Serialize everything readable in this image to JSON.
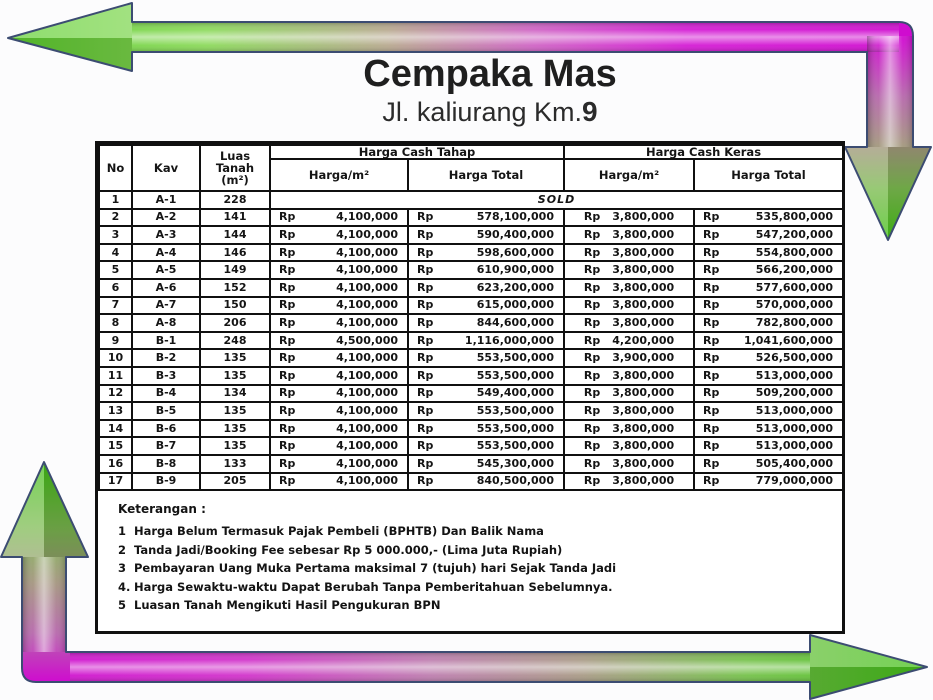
{
  "header": {
    "title": "Cempaka Mas",
    "subtitle_prefix": "Jl. kaliurang Km.",
    "subtitle_km": "9"
  },
  "table": {
    "col_headers": {
      "no": "No",
      "kav": "Kav",
      "luas": "Luas Tanah (m²)",
      "cash_tahap": "Harga Cash Tahap",
      "cash_keras": "Harga Cash Keras",
      "harga_per_m2": "Harga/m²",
      "harga_total": "Harga Total"
    },
    "currency": "Rp",
    "sold_label": "SOLD",
    "rows": [
      {
        "no": "1",
        "kav": "A-1",
        "luas": "228",
        "sold": true
      },
      {
        "no": "2",
        "kav": "A-2",
        "luas": "141",
        "tahap_per_m2": "4,100,000",
        "tahap_total": "578,100,000",
        "keras_per_m2": "3,800,000",
        "keras_total": "535,800,000"
      },
      {
        "no": "3",
        "kav": "A-3",
        "luas": "144",
        "tahap_per_m2": "4,100,000",
        "tahap_total": "590,400,000",
        "keras_per_m2": "3,800,000",
        "keras_total": "547,200,000"
      },
      {
        "no": "4",
        "kav": "A-4",
        "luas": "146",
        "tahap_per_m2": "4,100,000",
        "tahap_total": "598,600,000",
        "keras_per_m2": "3,800,000",
        "keras_total": "554,800,000"
      },
      {
        "no": "5",
        "kav": "A-5",
        "luas": "149",
        "tahap_per_m2": "4,100,000",
        "tahap_total": "610,900,000",
        "keras_per_m2": "3,800,000",
        "keras_total": "566,200,000"
      },
      {
        "no": "6",
        "kav": "A-6",
        "luas": "152",
        "tahap_per_m2": "4,100,000",
        "tahap_total": "623,200,000",
        "keras_per_m2": "3,800,000",
        "keras_total": "577,600,000"
      },
      {
        "no": "7",
        "kav": "A-7",
        "luas": "150",
        "tahap_per_m2": "4,100,000",
        "tahap_total": "615,000,000",
        "keras_per_m2": "3,800,000",
        "keras_total": "570,000,000"
      },
      {
        "no": "8",
        "kav": "A-8",
        "luas": "206",
        "tahap_per_m2": "4,100,000",
        "tahap_total": "844,600,000",
        "keras_per_m2": "3,800,000",
        "keras_total": "782,800,000"
      },
      {
        "no": "9",
        "kav": "B-1",
        "luas": "248",
        "tahap_per_m2": "4,500,000",
        "tahap_total": "1,116,000,000",
        "keras_per_m2": "4,200,000",
        "keras_total": "1,041,600,000"
      },
      {
        "no": "10",
        "kav": "B-2",
        "luas": "135",
        "tahap_per_m2": "4,100,000",
        "tahap_total": "553,500,000",
        "keras_per_m2": "3,900,000",
        "keras_total": "526,500,000"
      },
      {
        "no": "11",
        "kav": "B-3",
        "luas": "135",
        "tahap_per_m2": "4,100,000",
        "tahap_total": "553,500,000",
        "keras_per_m2": "3,800,000",
        "keras_total": "513,000,000"
      },
      {
        "no": "12",
        "kav": "B-4",
        "luas": "134",
        "tahap_per_m2": "4,100,000",
        "tahap_total": "549,400,000",
        "keras_per_m2": "3,800,000",
        "keras_total": "509,200,000"
      },
      {
        "no": "13",
        "kav": "B-5",
        "luas": "135",
        "tahap_per_m2": "4,100,000",
        "tahap_total": "553,500,000",
        "keras_per_m2": "3,800,000",
        "keras_total": "513,000,000"
      },
      {
        "no": "14",
        "kav": "B-6",
        "luas": "135",
        "tahap_per_m2": "4,100,000",
        "tahap_total": "553,500,000",
        "keras_per_m2": "3,800,000",
        "keras_total": "513,000,000"
      },
      {
        "no": "15",
        "kav": "B-7",
        "luas": "135",
        "tahap_per_m2": "4,100,000",
        "tahap_total": "553,500,000",
        "keras_per_m2": "3,800,000",
        "keras_total": "513,000,000"
      },
      {
        "no": "16",
        "kav": "B-8",
        "luas": "133",
        "tahap_per_m2": "4,100,000",
        "tahap_total": "545,300,000",
        "keras_per_m2": "3,800,000",
        "keras_total": "505,400,000"
      },
      {
        "no": "17",
        "kav": "B-9",
        "luas": "205",
        "tahap_per_m2": "4,100,000",
        "tahap_total": "840,500,000",
        "keras_per_m2": "3,800,000",
        "keras_total": "779,000,000"
      }
    ]
  },
  "notes": {
    "heading": "Keterangan :",
    "items": [
      {
        "n": "1",
        "text": "Harga Belum Termasuk Pajak Pembeli (BPHTB) Dan Balik Nama"
      },
      {
        "n": "2",
        "text": "Tanda Jadi/Booking Fee sebesar Rp 5 000.000,- (Lima Juta Rupiah)"
      },
      {
        "n": "3",
        "text": "Pembayaran Uang Muka Pertama maksimal 7 (tujuh) hari Sejak Tanda Jadi"
      },
      {
        "n": "4.",
        "text": "Harga Sewaktu-waktu Dapat Berubah Tanpa Pemberitahuan Sebelumnya."
      },
      {
        "n": "5",
        "text": "Luasan Tanah Mengikuti Hasil Pengukuran BPN"
      }
    ]
  },
  "colors": {
    "arrow_green": "#46c21b",
    "arrow_magenta": "#cf0bcf",
    "table_border": "#101010"
  }
}
